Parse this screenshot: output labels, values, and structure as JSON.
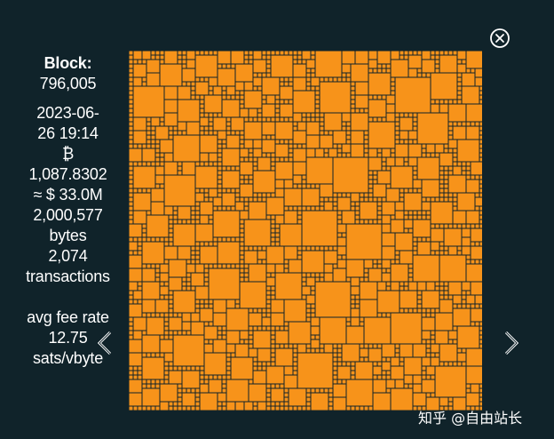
{
  "block": {
    "label": "Block:",
    "height": "796,005",
    "date_line1": "2023-06-",
    "date_line2": "26 19:14",
    "btc_symbol": "₿",
    "btc_amount": "1,087.8302",
    "usd_value": "≈ $ 33.0M",
    "size_value": "2,000,577",
    "size_unit": "bytes",
    "tx_count": "2,074",
    "tx_unit": "transactions",
    "fee_label": "avg fee rate",
    "fee_value": "12.75",
    "fee_unit": "sats/vbyte"
  },
  "controls": {
    "close_icon": "close-circle-icon",
    "prev_icon": "chevron-left-icon",
    "next_icon": "chevron-right-icon"
  },
  "colors": {
    "background": "#10232a",
    "transaction": "#f7931a",
    "text": "#ffffff"
  },
  "watermark": "知乎 @自由站长"
}
